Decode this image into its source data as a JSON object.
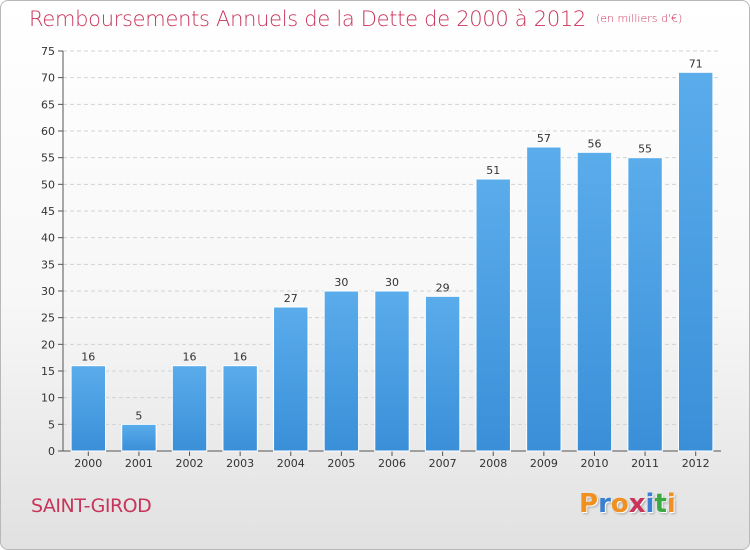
{
  "chart_data": {
    "type": "bar",
    "title": "Remboursements Annuels de la Dette de 2000 à 2012",
    "subtitle": "(en milliers d'€)",
    "categories": [
      "2000",
      "2001",
      "2002",
      "2003",
      "2004",
      "2005",
      "2006",
      "2007",
      "2008",
      "2009",
      "2010",
      "2011",
      "2012"
    ],
    "values": [
      16,
      5,
      16,
      16,
      27,
      30,
      30,
      29,
      51,
      57,
      56,
      55,
      71
    ],
    "ylim": [
      0,
      75
    ],
    "yticks": [
      0,
      5,
      10,
      15,
      20,
      25,
      30,
      35,
      40,
      45,
      50,
      55,
      60,
      65,
      70,
      75
    ],
    "grid": true,
    "legend": "none",
    "bar_color": "#3a8fd8",
    "bar_color_light": "#5aaceb",
    "title_color": "#c8345a"
  },
  "footer": {
    "commune": "SAINT-GIROD",
    "brand": [
      "P",
      "r",
      "o",
      "x",
      "i",
      "t",
      "i"
    ],
    "brand_colors": [
      "#f09020",
      "#3a7fd0",
      "#f09020",
      "#c8345a",
      "#3a7fd0",
      "#3aaa40",
      "#f09020"
    ]
  }
}
